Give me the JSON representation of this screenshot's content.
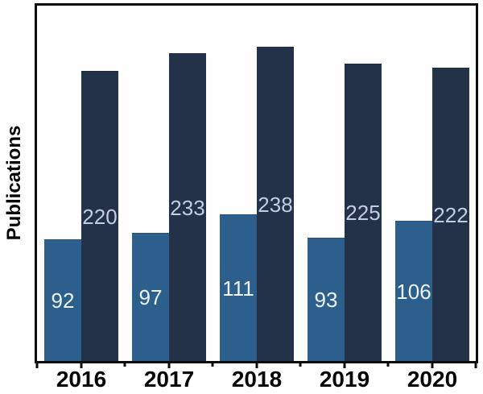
{
  "chart_data": {
    "type": "bar",
    "title": "",
    "xlabel": "",
    "ylabel": "Publications",
    "categories": [
      "2016",
      "2017",
      "2018",
      "2019",
      "2020"
    ],
    "series": [
      {
        "name": "lower-series",
        "color": "#2d5f8c",
        "border_color": "#27547d",
        "label_color": "#eef2f8",
        "values": [
          92,
          97,
          111,
          93,
          106
        ]
      },
      {
        "name": "upper-series",
        "color": "#243249",
        "border_color": "#1e2a3e",
        "label_color": "#c2cddd",
        "values": [
          220,
          233,
          238,
          225,
          222
        ]
      }
    ],
    "ylim": [
      0,
      270
    ],
    "y_ticks_visible": false,
    "grid": false,
    "legend": null,
    "bar_value_labels": "centered inside bars",
    "frame_color": "#0c0c0c",
    "background_color": "#ffffff"
  }
}
